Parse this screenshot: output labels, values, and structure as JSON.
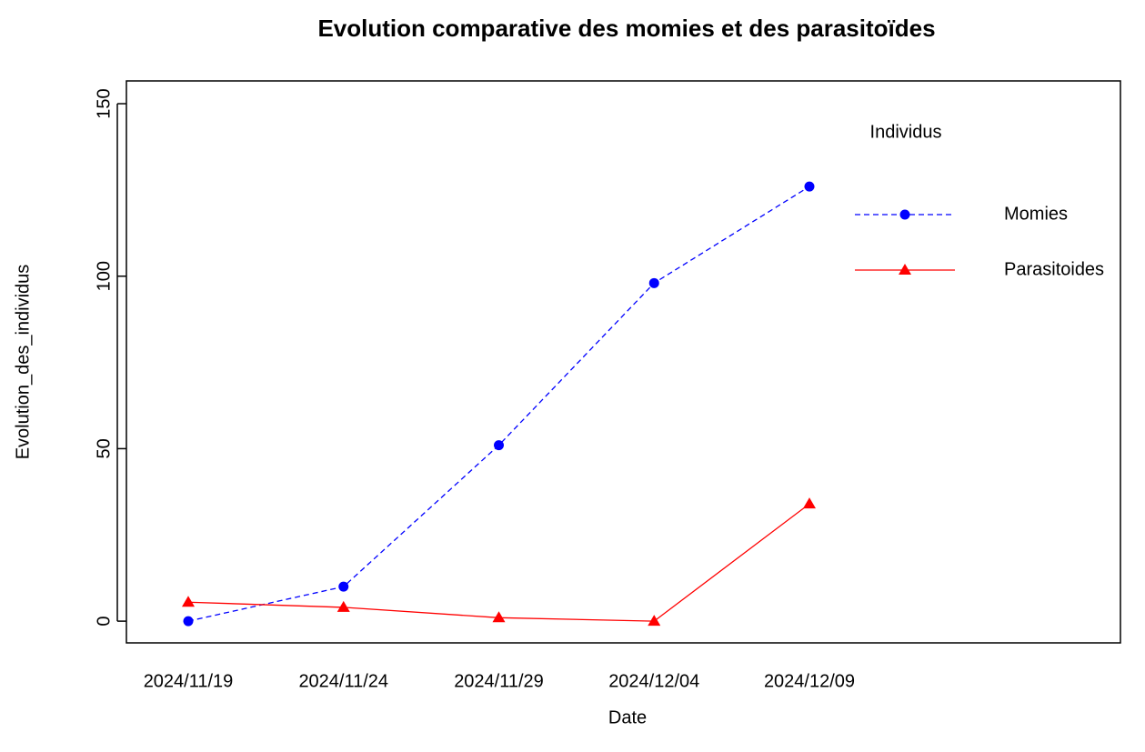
{
  "chart_data": {
    "type": "line",
    "title": "Evolution comparative des momies  et des parasitoïdes",
    "x_label": "Date",
    "y_label": "Evolution_des_individus",
    "categories": [
      "2024/11/19",
      "2024/11/24",
      "2024/11/29",
      "2024/12/04",
      "2024/12/09"
    ],
    "series": [
      {
        "name": "Momies",
        "color": "#0000ff",
        "dash": true,
        "marker": "circle",
        "values": [
          0,
          10,
          51,
          98,
          126
        ]
      },
      {
        "name": "Parasitoides",
        "color": "#ff0000",
        "dash": false,
        "marker": "triangle",
        "values": [
          5.5,
          4,
          1,
          0,
          34
        ]
      }
    ],
    "legend_title": "Individus",
    "legend": "top-right",
    "ylim": [
      -6.3,
      156.6
    ],
    "yticks": [
      0,
      50,
      100,
      150
    ],
    "grid": false
  }
}
